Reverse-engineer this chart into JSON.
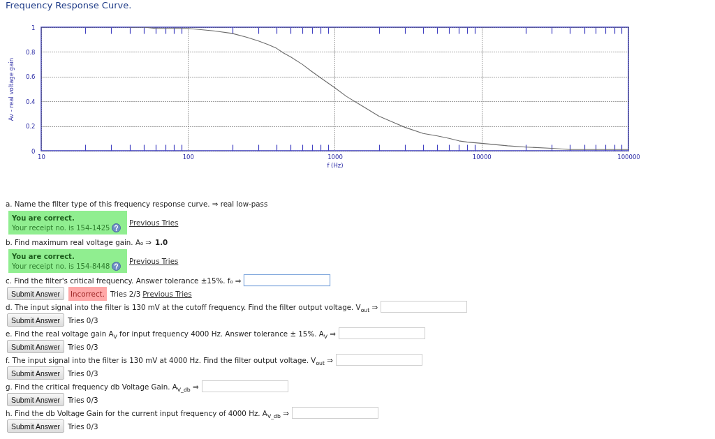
{
  "chart_data": {
    "type": "line",
    "title": "Frequency Response Curve.",
    "xlabel": "f (Hz)",
    "ylabel": "Av - real voltage gain",
    "x": [
      40,
      50,
      60,
      70,
      80,
      100,
      150,
      200,
      250,
      300,
      350,
      400,
      450,
      500,
      600,
      700,
      800,
      1000,
      1200,
      1500,
      2000,
      2500,
      3000,
      4000,
      5000,
      6000,
      7000,
      8000,
      10000,
      15000,
      20000,
      30000,
      40000,
      50000,
      70000,
      100000
    ],
    "series": [
      {
        "color": "#6b6b6b",
        "values": [
          1.0,
          1.0,
          0.99,
          0.99,
          0.99,
          0.99,
          0.97,
          0.95,
          0.92,
          0.89,
          0.86,
          0.83,
          0.79,
          0.76,
          0.7,
          0.64,
          0.59,
          0.51,
          0.44,
          0.37,
          0.28,
          0.23,
          0.19,
          0.14,
          0.12,
          0.1,
          0.08,
          0.07,
          0.06,
          0.04,
          0.03,
          0.02,
          0.01,
          0.01,
          0.01,
          0.01
        ]
      }
    ],
    "xlim": [
      10,
      100000
    ],
    "ylim": [
      0,
      1
    ],
    "xticks": [
      10,
      {
        "value": 20,
        "label": null
      },
      {
        "value": 30,
        "label": null
      },
      {
        "value": 40,
        "label": null
      },
      {
        "value": 50,
        "label": null
      },
      {
        "value": 60,
        "label": null
      },
      {
        "value": 70,
        "label": null
      },
      {
        "value": 80,
        "label": null
      },
      {
        "value": 90,
        "label": null
      },
      100,
      {
        "value": 200,
        "label": null
      },
      {
        "value": 300,
        "label": null
      },
      {
        "value": 400,
        "label": null
      },
      {
        "value": 500,
        "label": null
      },
      {
        "value": 600,
        "label": null
      },
      {
        "value": 700,
        "label": null
      },
      {
        "value": 800,
        "label": null
      },
      {
        "value": 900,
        "label": null
      },
      1000,
      {
        "value": 2000,
        "label": null
      },
      {
        "value": 3000,
        "label": null
      },
      {
        "value": 4000,
        "label": null
      },
      {
        "value": 5000,
        "label": null
      },
      {
        "value": 6000,
        "label": null
      },
      {
        "value": 7000,
        "label": null
      },
      {
        "value": 8000,
        "label": null
      },
      {
        "value": 9000,
        "label": null
      },
      10000,
      {
        "value": 20000,
        "label": null
      },
      {
        "value": 30000,
        "label": null
      },
      {
        "value": 40000,
        "label": null
      },
      {
        "value": 50000,
        "label": null
      },
      {
        "value": 60000,
        "label": null
      },
      {
        "value": 70000,
        "label": null
      },
      {
        "value": 80000,
        "label": null
      },
      {
        "value": 90000,
        "label": null
      },
      100000
    ],
    "yticks": [
      0,
      0.2,
      0.4,
      0.6,
      0.8,
      1
    ],
    "log": "x",
    "grid": true,
    "annotations": [
      "a. Name the filter type of this frequency response curve. ⇒ real low-pass",
      "You are correct.",
      "Your receipt no. is 154-1425",
      "Previous Tries",
      "b. Find maximum real voltage gain. A₀ ⇒",
      "1.0",
      "You are correct.",
      "Your receipt no. is 154-8448",
      "Previous Tries",
      "c. Find the filter's critical frequency. Answer tolerance ±15%. f₀ ⇒",
      "Submit Answer",
      "Incorrect.",
      "Tries 2/3",
      "Previous Tries",
      "d. The input signal into the filter is 130 mV at the cutoff frequency. Find the filter output voltage. V$_{out}$ ⇒",
      "Submit Answer",
      "Tries 0/3",
      "e. Find the real voltage gain A$_{V}$ for input frequency 4000 Hz. Answer tolerance ± 15%. A$_{V}$ ⇒",
      "Submit Answer",
      "Tries 0/3",
      "f. The input signal into the filter is 130 mV at 4000 Hz. Find the filter output voltage. V$_{out}$ ⇒",
      "Submit Answer",
      "Tries 0/3",
      "g. Find the critical frequency db Voltage Gain. A$_{V_db}$ ⇒",
      "Submit Answer",
      "Tries 0/3",
      "h. Find the db Voltage Gain for the current input frequency of 4000 Hz. A$_{V_db}$ ⇒",
      "Submit Answer",
      "Tries 0/3"
    ]
  }
}
